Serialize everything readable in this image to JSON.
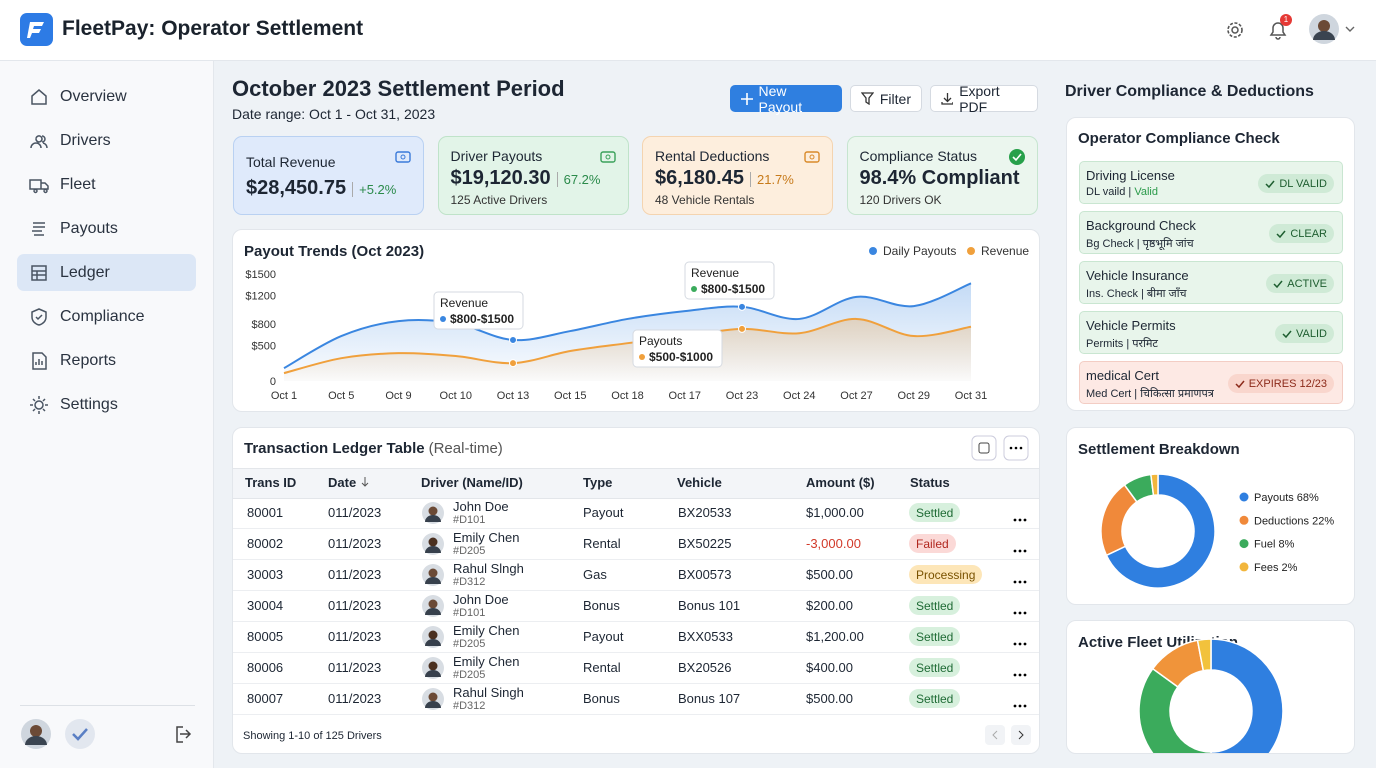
{
  "header": {
    "title": "FleetPay: Operator Settlement",
    "notification_count": "1"
  },
  "nav": [
    "Overview",
    "Drivers",
    "Fleet",
    "Payouts",
    "Ledger",
    "Compliance",
    "Reports",
    "Settings"
  ],
  "page": {
    "title": "October 2023 Settlement Period",
    "date_range": "Date range: Oct 1 - Oct 31, 2023",
    "buttons": [
      "New Payout",
      "Filter",
      "Export PDF"
    ]
  },
  "kpis": [
    {
      "label": "Total Revenue",
      "value": "$28,450.75",
      "change": "+5.2%"
    },
    {
      "label": "Driver Payouts",
      "value": "$19,120.30",
      "change": "67.2%",
      "note": "125 Active Drivers"
    },
    {
      "label": "Rental Deductions",
      "value": "$6,180.45",
      "change": "21.7%",
      "note": "48 Vehicle Rentals"
    },
    {
      "label": "Compliance Status",
      "value": "98.4% Compliant",
      "note": "120 Drivers OK"
    }
  ],
  "chart_data": [
    {
      "type": "line",
      "title": "Payout Trends (Oct 2023)",
      "categories": [
        "Oct 1",
        "Oct 5",
        "Oct 9",
        "Oct 10",
        "Oct 13",
        "Oct 15",
        "Oct 18",
        "Oct 17",
        "Oct 23",
        "Oct 24",
        "Oct 27",
        "Oct 29",
        "Oct 31"
      ],
      "series": [
        {
          "name": "Daily Payouts",
          "color": "#3a86e0",
          "values": [
            180,
            630,
            840,
            810,
            575,
            700,
            870,
            980,
            1040,
            870,
            1180,
            1050,
            1370
          ]
        },
        {
          "name": "Revenue",
          "color": "#f0a03c",
          "values": [
            110,
            320,
            390,
            350,
            250,
            420,
            530,
            630,
            730,
            670,
            870,
            630,
            760
          ]
        }
      ],
      "ylim": [
        0,
        1500
      ],
      "yticks": [
        0,
        {
          "value": 500,
          "label": "$500"
        },
        {
          "value": 800,
          "label": "$800"
        },
        {
          "value": 1200,
          "label": "$1200"
        },
        {
          "value": 1500,
          "label": "$1500"
        }
      ],
      "legend": "top-right",
      "annotations": [
        {
          "title": "Revenue",
          "text": "$800-$1500"
        },
        {
          "title": "Payouts",
          "text": "$500-$1000"
        },
        {
          "title": "Revenue",
          "text": "$800-$1500"
        }
      ]
    },
    {
      "type": "pie",
      "title": "Settlement Breakdown",
      "categories": [
        "Payouts 68%",
        "Deductions 22%",
        "Fuel 8%",
        "Fees 2%"
      ],
      "values": [
        68,
        22,
        8,
        2
      ],
      "colors": [
        "#2f7fe0",
        "#f0893a",
        "#3bab5c",
        "#f2b63c"
      ]
    },
    {
      "type": "pie",
      "title": "Active Fleet Utilization",
      "values": [
        50,
        35,
        12,
        3
      ],
      "colors": [
        "#2f7fe0",
        "#3bab5c",
        "#f0943a",
        "#f2c23c"
      ]
    }
  ],
  "ledger": {
    "title": "Transaction Ledger Table",
    "subtitle": "(Real-time)",
    "columns": [
      "Trans ID",
      "Date",
      "Driver (Name/ID)",
      "Type",
      "Vehicle",
      "Amount ($)",
      "Status"
    ],
    "rows": [
      [
        "80001",
        "011/2023",
        "John Doe",
        "#D101",
        "Payout",
        "BX20533",
        "$1,000.00",
        "Settled"
      ],
      [
        "80002",
        "011/2023",
        "Emily Chen",
        "#D205",
        "Rental",
        "BX50225",
        "-3,000.00",
        "Failed"
      ],
      [
        "30003",
        "011/2023",
        "Rahul Slngh",
        "#D312",
        "Gas",
        "BX00573",
        "$500.00",
        "Processing"
      ],
      [
        "30004",
        "011/2023",
        "John Doe",
        "#D101",
        "Bonus",
        "Bonus 101",
        "$200.00",
        "Settled"
      ],
      [
        "80005",
        "011/2023",
        "Emily Chen",
        "#D205",
        "Payout",
        "BXX0533",
        "$1,200.00",
        "Settled"
      ],
      [
        "80006",
        "011/2023",
        "Emily Chen",
        "#D205",
        "Rental",
        "BX20526",
        "$400.00",
        "Settled"
      ],
      [
        "80007",
        "011/2023",
        "Rahul Singh",
        "#D312",
        "Bonus",
        "Bonus 107",
        "$500.00",
        "Settled"
      ]
    ],
    "footer": "Showing 1-10 of 125 Drivers"
  },
  "compliance": {
    "section_title": "Driver Compliance & Deductions",
    "title": "Operator Compliance Check",
    "items": [
      {
        "title": "Driving License",
        "detail": "DL vaild | ",
        "status": "Valid",
        "badge": "DL VALID"
      },
      {
        "title": "Background Check",
        "detail": "Bg Check | पृष्ठभूमि जांच",
        "badge": "CLEAR"
      },
      {
        "title": "Vehicle Insurance",
        "detail": "Ins. Check | बीमा जाँच",
        "badge": "ACTIVE"
      },
      {
        "title": "Vehicle Permits",
        "detail": "Permits | परमिट",
        "badge": "VALID"
      },
      {
        "title": "medical Cert",
        "detail": "Med Cert | चिकित्सा प्रमाणपत्र",
        "badge": "EXPIRES 12/23"
      }
    ]
  }
}
